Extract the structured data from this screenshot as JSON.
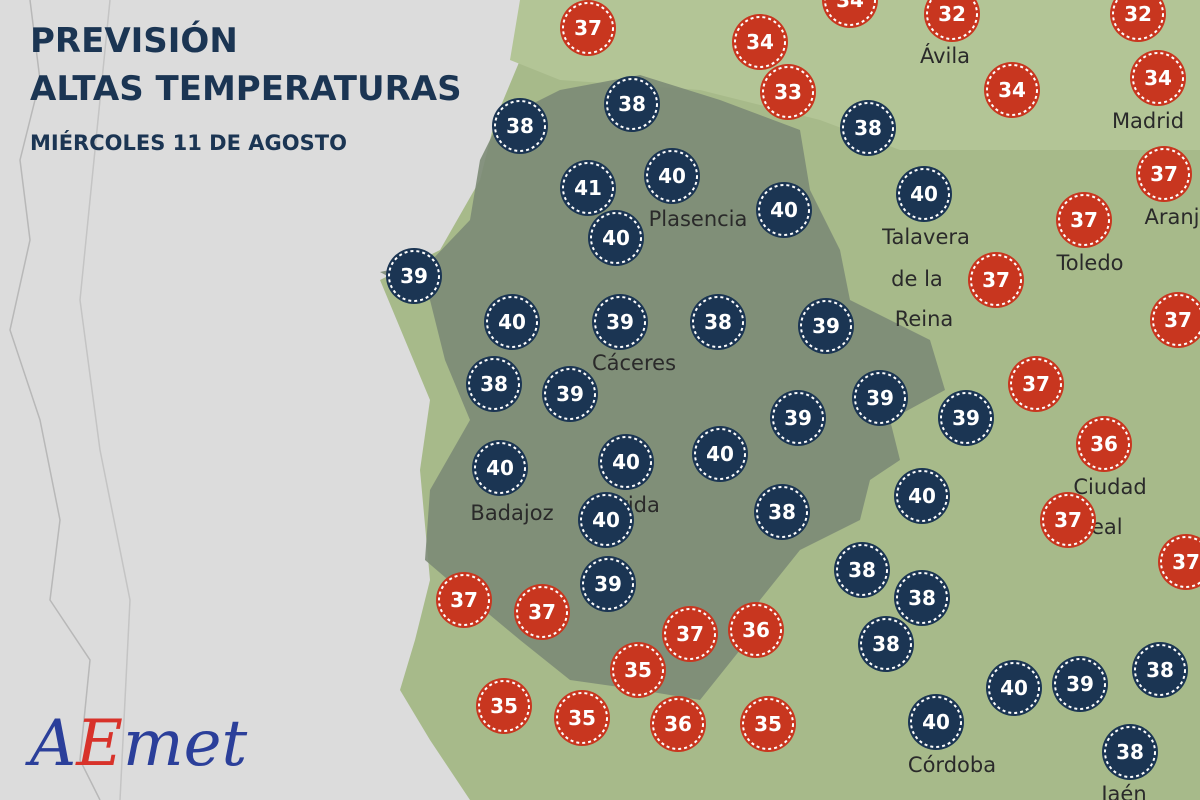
{
  "header": {
    "title_lines": [
      "PREVISIÓN",
      "ALTAS TEMPERATURAS"
    ],
    "subtitle": "MIÉRCOLES 11 DE AGOSTO"
  },
  "places": [
    "Ávila",
    "Madrid",
    "Aranj",
    "Plasencia",
    "Talavera",
    "de la",
    "Reina",
    "Toledo",
    "Cáceres",
    "Ciudad",
    "Real",
    "Badajoz",
    "Mérida",
    "Córdoba",
    "Jaén"
  ],
  "markers": [
    {
      "value": 37,
      "color": "#c8361f"
    },
    {
      "value": 34,
      "color": "#c8361f"
    },
    {
      "value": 34,
      "color": "#c8361f"
    },
    {
      "value": 32,
      "color": "#c8361f"
    },
    {
      "value": 32,
      "color": "#c8361f"
    },
    {
      "value": 33,
      "color": "#c8361f"
    },
    {
      "value": 34,
      "color": "#c8361f"
    },
    {
      "value": 34,
      "color": "#c8361f"
    },
    {
      "value": 38,
      "color": "#1b3553"
    },
    {
      "value": 38,
      "color": "#1b3553"
    },
    {
      "value": 38,
      "color": "#1b3553"
    },
    {
      "value": 40,
      "color": "#1b3553"
    },
    {
      "value": 41,
      "color": "#1b3553"
    },
    {
      "value": 40,
      "color": "#1b3553"
    },
    {
      "value": 40,
      "color": "#1b3553"
    },
    {
      "value": 40,
      "color": "#1b3553"
    },
    {
      "value": 37,
      "color": "#c8361f"
    },
    {
      "value": 37,
      "color": "#c8361f"
    },
    {
      "value": 39,
      "color": "#1b3553"
    },
    {
      "value": 37,
      "color": "#c8361f"
    },
    {
      "value": 40,
      "color": "#1b3553"
    },
    {
      "value": 39,
      "color": "#1b3553"
    },
    {
      "value": 38,
      "color": "#1b3553"
    },
    {
      "value": 39,
      "color": "#1b3553"
    },
    {
      "value": 37,
      "color": "#c8361f"
    },
    {
      "value": 38,
      "color": "#1b3553"
    },
    {
      "value": 39,
      "color": "#1b3553"
    },
    {
      "value": 37,
      "color": "#c8361f"
    },
    {
      "value": 39,
      "color": "#1b3553"
    },
    {
      "value": 39,
      "color": "#1b3553"
    },
    {
      "value": 39,
      "color": "#1b3553"
    },
    {
      "value": 36,
      "color": "#c8361f"
    },
    {
      "value": 40,
      "color": "#1b3553"
    },
    {
      "value": 40,
      "color": "#1b3553"
    },
    {
      "value": 40,
      "color": "#1b3553"
    },
    {
      "value": 40,
      "color": "#1b3553"
    },
    {
      "value": 38,
      "color": "#1b3553"
    },
    {
      "value": 40,
      "color": "#1b3553"
    },
    {
      "value": 37,
      "color": "#c8361f"
    },
    {
      "value": 38,
      "color": "#1b3553"
    },
    {
      "value": 38,
      "color": "#1b3553"
    },
    {
      "value": 37,
      "color": "#c8361f"
    },
    {
      "value": 39,
      "color": "#1b3553"
    },
    {
      "value": 37,
      "color": "#c8361f"
    },
    {
      "value": 37,
      "color": "#c8361f"
    },
    {
      "value": 37,
      "color": "#c8361f"
    },
    {
      "value": 36,
      "color": "#c8361f"
    },
    {
      "value": 35,
      "color": "#c8361f"
    },
    {
      "value": 38,
      "color": "#1b3553"
    },
    {
      "value": 35,
      "color": "#c8361f"
    },
    {
      "value": 35,
      "color": "#c8361f"
    },
    {
      "value": 36,
      "color": "#c8361f"
    },
    {
      "value": 35,
      "color": "#c8361f"
    },
    {
      "value": 40,
      "color": "#1b3553"
    },
    {
      "value": 39,
      "color": "#1b3553"
    },
    {
      "value": 38,
      "color": "#1b3553"
    },
    {
      "value": 40,
      "color": "#1b3553"
    },
    {
      "value": 38,
      "color": "#1b3553"
    }
  ],
  "logo": [
    "A",
    "E",
    "met"
  ]
}
